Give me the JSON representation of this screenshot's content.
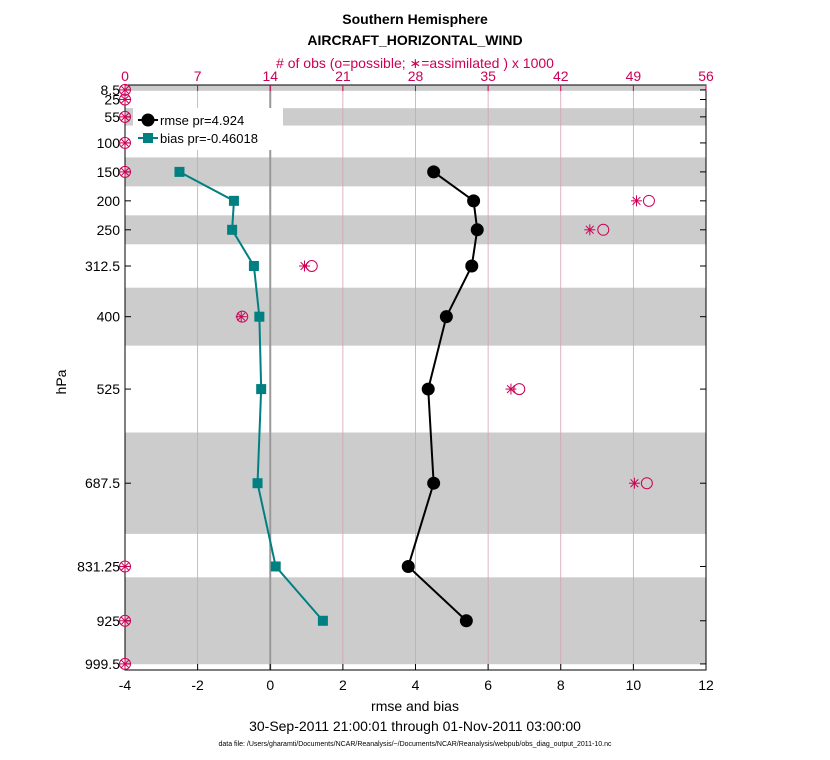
{
  "chart_data": {
    "type": "line",
    "title": "Southern Hemisphere",
    "subtitle": "AIRCRAFT_HORIZONTAL_WIND",
    "top_axis_label": "# of obs (o=possible; ∗=assimilated ) x 1000",
    "xlabel": "rmse and bias",
    "ylabel": "hPa",
    "date_range": "30-Sep-2011 21:00:01 through 01-Nov-2011 03:00:00",
    "footer": "data file: /Users/gharamti/Documents/NCAR/Reanalysis/~/Documents/NCAR/Reanalysis/webpub/obs_diag_output_2011-10.nc",
    "xlim": [
      -4,
      12
    ],
    "x_ticks": [
      "-4",
      "-2",
      "0",
      "2",
      "4",
      "6",
      "8",
      "10",
      "12"
    ],
    "top_xlim": [
      0,
      56
    ],
    "top_ticks": [
      "0",
      "7",
      "14",
      "21",
      "28",
      "35",
      "42",
      "49",
      "56"
    ],
    "levels": [
      "8.5",
      "25",
      "55",
      "100",
      "150",
      "200",
      "250",
      "312.5",
      "400",
      "525",
      "687.5",
      "831.25",
      "925",
      "999.5"
    ],
    "level_values": [
      8.5,
      25,
      55,
      100,
      150,
      200,
      250,
      312.5,
      400,
      525,
      687.5,
      831.25,
      925,
      999.5
    ],
    "shaded_bands": [
      [
        0,
        10
      ],
      [
        40,
        70
      ],
      [
        125,
        175
      ],
      [
        225,
        275
      ],
      [
        350,
        450
      ],
      [
        600,
        775
      ],
      [
        850,
        1000
      ]
    ],
    "series": [
      {
        "name": "rmse pr=4.924",
        "color": "#000000",
        "marker": "circle",
        "levels": [
          150,
          200,
          250,
          312.5,
          400,
          525,
          687.5,
          831.25,
          925
        ],
        "values": [
          4.5,
          5.6,
          5.7,
          5.55,
          4.85,
          4.35,
          4.5,
          3.8,
          5.4
        ]
      },
      {
        "name": "bias pr=-0.46018",
        "color": "#008080",
        "marker": "square",
        "levels": [
          150,
          200,
          250,
          312.5,
          400,
          525,
          687.5,
          831.25,
          925
        ],
        "values": [
          -2.5,
          -1.0,
          -1.05,
          -0.45,
          -0.3,
          -0.25,
          -0.35,
          0.15,
          1.45
        ]
      }
    ],
    "obs_count_k": {
      "levels": [
        8.5,
        25,
        55,
        100,
        150,
        200,
        250,
        312.5,
        400,
        525,
        687.5,
        831.25,
        925,
        999.5
      ],
      "possible": [
        0,
        0,
        0,
        0,
        0,
        50.5,
        46.1,
        18.0,
        11.3,
        38.0,
        50.3,
        0,
        0,
        0
      ],
      "assimilated": [
        0,
        0,
        0,
        0,
        0,
        49.3,
        44.8,
        17.3,
        11.2,
        37.2,
        49.1,
        0,
        0,
        0
      ]
    },
    "legend_position": "top-left",
    "colors": {
      "obs": "#cc0055",
      "rmse": "#000000",
      "bias": "#008080",
      "band": "#cccccc",
      "zero_line": "#999999"
    }
  }
}
